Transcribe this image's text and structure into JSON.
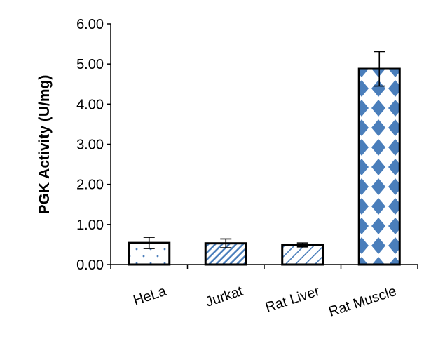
{
  "chart_data": {
    "type": "bar",
    "title": "",
    "xlabel": "",
    "ylabel": "PGK Activity (U/mg)",
    "ylim": [
      0,
      6
    ],
    "yticks": [
      "0.00",
      "1.00",
      "2.00",
      "3.00",
      "4.00",
      "5.00",
      "6.00"
    ],
    "categories": [
      "HeLa",
      "Jurkat",
      "Rat Liver",
      "Rat Muscle"
    ],
    "values": [
      0.54,
      0.53,
      0.49,
      4.88
    ],
    "errors": [
      0.14,
      0.11,
      0.05,
      0.43
    ],
    "patterns": [
      "sparse-dots",
      "diagonal-stripes",
      "diagonal-crosshatch",
      "large-diamonds"
    ],
    "grid": false,
    "legend": "none",
    "colors": {
      "bar_pattern": "#4a7ebb",
      "bar_outline": "#000000",
      "axis": "#000000"
    }
  }
}
